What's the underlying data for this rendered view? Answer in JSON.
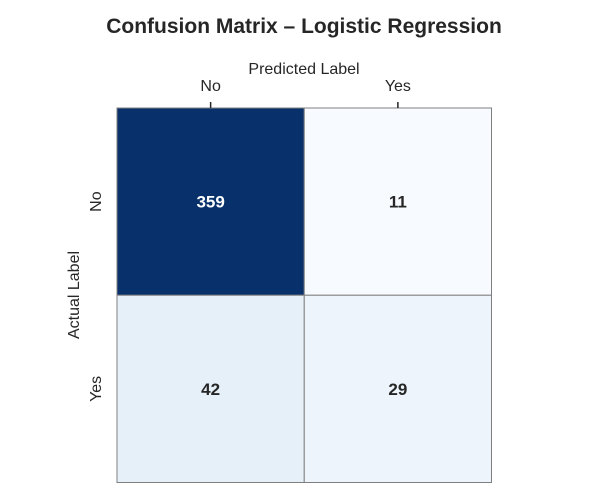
{
  "chart_data": {
    "type": "heatmap",
    "title": "Confusion Matrix – Logistic Regression",
    "xlabel": "Predicted Label",
    "ylabel": "Actual Label",
    "x_categories": [
      "No",
      "Yes"
    ],
    "y_categories": [
      "No",
      "Yes"
    ],
    "values": [
      [
        359,
        11
      ],
      [
        42,
        29
      ]
    ],
    "colormap": "Blues",
    "color_low": "#f7fbff",
    "color_high": "#08306b",
    "x_axis_position": "top",
    "colorbar": false
  }
}
